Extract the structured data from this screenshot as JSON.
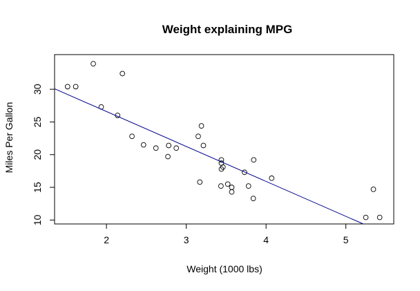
{
  "chart_data": {
    "type": "scatter",
    "title": "Weight explaining MPG",
    "xlabel": "Weight (1000 lbs)",
    "ylabel": "Miles Per Gallon",
    "xlim": [
      1.35,
      5.6
    ],
    "ylim": [
      9.4,
      35.3
    ],
    "xticks": [
      2,
      3,
      4,
      5
    ],
    "yticks": [
      10,
      15,
      20,
      25,
      30
    ],
    "grid": false,
    "points": [
      {
        "x": 2.62,
        "y": 21.0
      },
      {
        "x": 2.875,
        "y": 21.0
      },
      {
        "x": 2.32,
        "y": 22.8
      },
      {
        "x": 3.215,
        "y": 21.4
      },
      {
        "x": 3.44,
        "y": 18.7
      },
      {
        "x": 3.46,
        "y": 18.1
      },
      {
        "x": 3.57,
        "y": 14.3
      },
      {
        "x": 3.19,
        "y": 24.4
      },
      {
        "x": 3.15,
        "y": 22.8
      },
      {
        "x": 3.44,
        "y": 19.2
      },
      {
        "x": 3.44,
        "y": 17.8
      },
      {
        "x": 4.07,
        "y": 16.4
      },
      {
        "x": 3.73,
        "y": 17.3
      },
      {
        "x": 3.78,
        "y": 15.2
      },
      {
        "x": 5.25,
        "y": 10.4
      },
      {
        "x": 5.424,
        "y": 10.4
      },
      {
        "x": 5.345,
        "y": 14.7
      },
      {
        "x": 2.2,
        "y": 32.4
      },
      {
        "x": 1.615,
        "y": 30.4
      },
      {
        "x": 1.835,
        "y": 33.9
      },
      {
        "x": 2.465,
        "y": 21.5
      },
      {
        "x": 3.52,
        "y": 15.5
      },
      {
        "x": 3.435,
        "y": 15.2
      },
      {
        "x": 3.84,
        "y": 13.3
      },
      {
        "x": 3.845,
        "y": 19.2
      },
      {
        "x": 1.935,
        "y": 27.3
      },
      {
        "x": 2.14,
        "y": 26.0
      },
      {
        "x": 1.513,
        "y": 30.4
      },
      {
        "x": 3.17,
        "y": 15.8
      },
      {
        "x": 2.77,
        "y": 19.7
      },
      {
        "x": 3.57,
        "y": 15.0
      },
      {
        "x": 2.78,
        "y": 21.4
      }
    ],
    "regression_line": {
      "intercept": 37.285,
      "slope": -5.344,
      "color": "#00008b"
    },
    "point_color": "#000000"
  }
}
